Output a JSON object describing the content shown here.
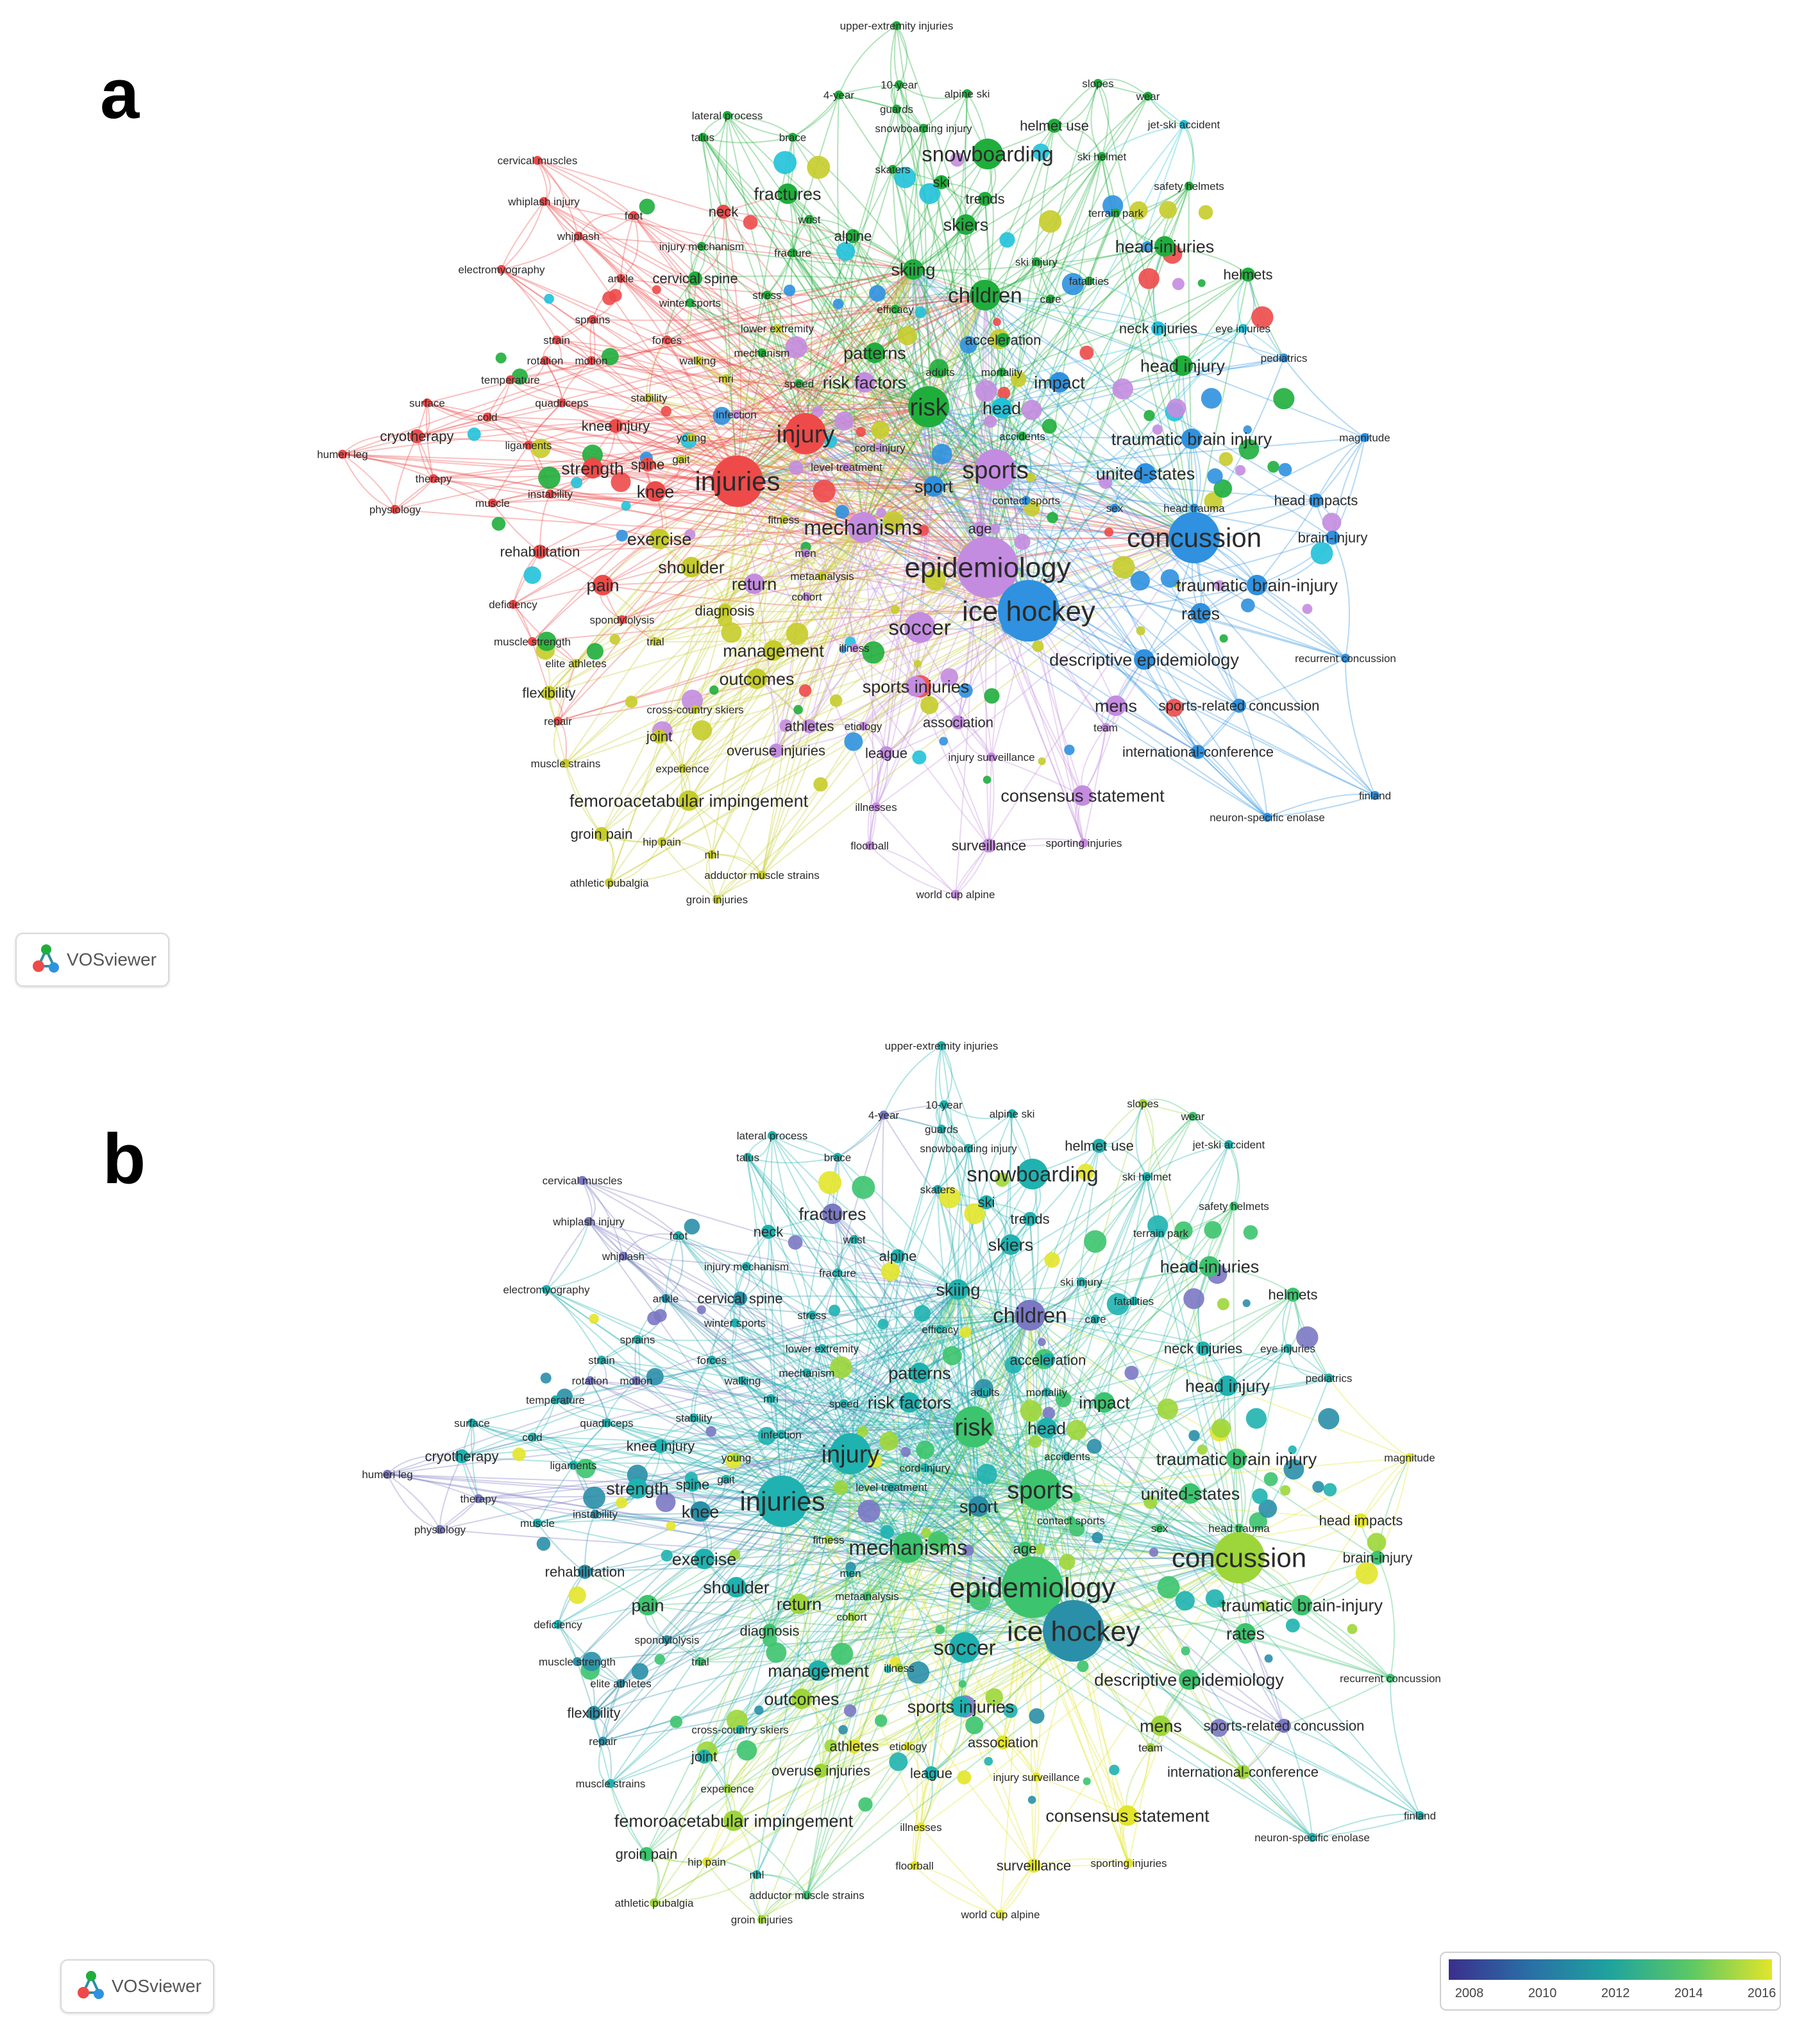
{
  "panels": [
    {
      "id": "a",
      "label": "a",
      "coloring": "cluster"
    },
    {
      "id": "b",
      "label": "b",
      "coloring": "year"
    }
  ],
  "watermark": {
    "text": "VOSviewer",
    "icon": "vosviewer-logo-icon"
  },
  "legend": {
    "ticks": [
      "2008",
      "2010",
      "2012",
      "2014",
      "2016"
    ],
    "colors": [
      "#3b2f8c",
      "#2a6fa6",
      "#1fa39e",
      "#5cc864",
      "#e3e52a"
    ]
  },
  "clusters": {
    "red": "#ee4a4a",
    "green": "#1fae3c",
    "blue": "#2f91df",
    "yellow": "#c6cc2a",
    "purple": "#c48ce0",
    "cyan": "#21c2da"
  },
  "year_colors": {
    "purple": "#7b78c4",
    "darkteal": "#2a8fa8",
    "teal": "#1fb2b0",
    "green": "#3cc46e",
    "lime": "#9dd63a",
    "yellow": "#e3e52a"
  },
  "chart_data": {
    "type": "network",
    "nodes": [
      {
        "label": "upper-extremity injuries",
        "size": 1,
        "cluster": "green",
        "year": "teal"
      },
      {
        "label": "10-year",
        "size": 1,
        "cluster": "green",
        "year": "teal"
      },
      {
        "label": "4-year",
        "size": 1,
        "cluster": "green",
        "year": "purple"
      },
      {
        "label": "alpine ski",
        "size": 1,
        "cluster": "green",
        "year": "teal"
      },
      {
        "label": "slopes",
        "size": 1,
        "cluster": "green",
        "year": "lime"
      },
      {
        "label": "wear",
        "size": 1,
        "cluster": "green",
        "year": "green"
      },
      {
        "label": "guards",
        "size": 1,
        "cluster": "green",
        "year": "teal"
      },
      {
        "label": "lateral process",
        "size": 1,
        "cluster": "green",
        "year": "teal"
      },
      {
        "label": "snowboarding injury",
        "size": 1,
        "cluster": "green",
        "year": "teal"
      },
      {
        "label": "helmet use",
        "size": 2,
        "cluster": "green",
        "year": "teal"
      },
      {
        "label": "jet-ski accident",
        "size": 1,
        "cluster": "cyan",
        "year": "teal"
      },
      {
        "label": "talus",
        "size": 1,
        "cluster": "green",
        "year": "teal"
      },
      {
        "label": "brace",
        "size": 1,
        "cluster": "green",
        "year": "teal"
      },
      {
        "label": "cervical muscles",
        "size": 1,
        "cluster": "red",
        "year": "purple"
      },
      {
        "label": "snowboarding",
        "size": 4,
        "cluster": "green",
        "year": "teal"
      },
      {
        "label": "ski helmet",
        "size": 1,
        "cluster": "green",
        "year": "teal"
      },
      {
        "label": "skaters",
        "size": 1,
        "cluster": "green",
        "year": "teal"
      },
      {
        "label": "ski",
        "size": 2,
        "cluster": "green",
        "year": "teal"
      },
      {
        "label": "safety helmets",
        "size": 1,
        "cluster": "green",
        "year": "green"
      },
      {
        "label": "fractures",
        "size": 3,
        "cluster": "green",
        "year": "purple"
      },
      {
        "label": "trends",
        "size": 2,
        "cluster": "green",
        "year": "teal"
      },
      {
        "label": "whiplash injury",
        "size": 1,
        "cluster": "red",
        "year": "purple"
      },
      {
        "label": "foot",
        "size": 1,
        "cluster": "red",
        "year": "teal"
      },
      {
        "label": "neck",
        "size": 2,
        "cluster": "red",
        "year": "teal"
      },
      {
        "label": "wrist",
        "size": 1,
        "cluster": "green",
        "year": "teal"
      },
      {
        "label": "terrain park",
        "size": 1,
        "cluster": "green",
        "year": "teal"
      },
      {
        "label": "skiers",
        "size": 3,
        "cluster": "green",
        "year": "teal"
      },
      {
        "label": "whiplash",
        "size": 1,
        "cluster": "red",
        "year": "purple"
      },
      {
        "label": "alpine",
        "size": 2,
        "cluster": "green",
        "year": "teal"
      },
      {
        "label": "head-injuries",
        "size": 3,
        "cluster": "green",
        "year": "green"
      },
      {
        "label": "injury mechanism",
        "size": 1,
        "cluster": "green",
        "year": "teal"
      },
      {
        "label": "fracture",
        "size": 1,
        "cluster": "green",
        "year": "teal"
      },
      {
        "label": "ski injury",
        "size": 1,
        "cluster": "green",
        "year": "teal"
      },
      {
        "label": "helmets",
        "size": 2,
        "cluster": "green",
        "year": "green"
      },
      {
        "label": "electromyography",
        "size": 1,
        "cluster": "red",
        "year": "teal"
      },
      {
        "label": "ankle",
        "size": 1,
        "cluster": "red",
        "year": "darkteal"
      },
      {
        "label": "cervical spine",
        "size": 2,
        "cluster": "green",
        "year": "darkteal"
      },
      {
        "label": "skiing",
        "size": 3,
        "cluster": "green",
        "year": "teal"
      },
      {
        "label": "fatalities",
        "size": 1,
        "cluster": "green",
        "year": "teal"
      },
      {
        "label": "children",
        "size": 4,
        "cluster": "green",
        "year": "purple"
      },
      {
        "label": "care",
        "size": 1,
        "cluster": "green",
        "year": "teal"
      },
      {
        "label": "stress",
        "size": 1,
        "cluster": "green",
        "year": "teal"
      },
      {
        "label": "winter sports",
        "size": 1,
        "cluster": "green",
        "year": "teal"
      },
      {
        "label": "efficacy",
        "size": 1,
        "cluster": "green",
        "year": "teal"
      },
      {
        "label": "sprains",
        "size": 1,
        "cluster": "red",
        "year": "teal"
      },
      {
        "label": "neck injuries",
        "size": 2,
        "cluster": "cyan",
        "year": "teal"
      },
      {
        "label": "eye injuries",
        "size": 1,
        "cluster": "cyan",
        "year": "teal"
      },
      {
        "label": "lower extremity",
        "size": 1,
        "cluster": "yellow",
        "year": "teal"
      },
      {
        "label": "pediatrics",
        "size": 1,
        "cluster": "blue",
        "year": "teal"
      },
      {
        "label": "strain",
        "size": 1,
        "cluster": "red",
        "year": "teal"
      },
      {
        "label": "forces",
        "size": 1,
        "cluster": "red",
        "year": "teal"
      },
      {
        "label": "acceleration",
        "size": 2,
        "cluster": "green",
        "year": "teal"
      },
      {
        "label": "rotation",
        "size": 1,
        "cluster": "red",
        "year": "purple"
      },
      {
        "label": "motion",
        "size": 1,
        "cluster": "red",
        "year": "purple"
      },
      {
        "label": "walking",
        "size": 1,
        "cluster": "yellow",
        "year": "teal"
      },
      {
        "label": "mechanism",
        "size": 1,
        "cluster": "green",
        "year": "teal"
      },
      {
        "label": "patterns",
        "size": 3,
        "cluster": "green",
        "year": "teal"
      },
      {
        "label": "head injury",
        "size": 3,
        "cluster": "green",
        "year": "teal"
      },
      {
        "label": "adults",
        "size": 1,
        "cluster": "green",
        "year": "teal"
      },
      {
        "label": "mortality",
        "size": 1,
        "cluster": "green",
        "year": "teal"
      },
      {
        "label": "temperature",
        "size": 1,
        "cluster": "red",
        "year": "teal"
      },
      {
        "label": "mri",
        "size": 1,
        "cluster": "yellow",
        "year": "teal"
      },
      {
        "label": "speed",
        "size": 1,
        "cluster": "green",
        "year": "teal"
      },
      {
        "label": "risk factors",
        "size": 3,
        "cluster": "purple",
        "year": "teal"
      },
      {
        "label": "impact",
        "size": 3,
        "cluster": "blue",
        "year": "green"
      },
      {
        "label": "surface",
        "size": 1,
        "cluster": "red",
        "year": "teal"
      },
      {
        "label": "quadriceps",
        "size": 1,
        "cluster": "red",
        "year": "teal"
      },
      {
        "label": "stability",
        "size": 1,
        "cluster": "yellow",
        "year": "teal"
      },
      {
        "label": "risk",
        "size": 5,
        "cluster": "green",
        "year": "green"
      },
      {
        "label": "head",
        "size": 3,
        "cluster": "cyan",
        "year": "teal"
      },
      {
        "label": "cold",
        "size": 1,
        "cluster": "red",
        "year": "teal"
      },
      {
        "label": "infection",
        "size": 1,
        "cluster": "purple",
        "year": "teal"
      },
      {
        "label": "knee injury",
        "size": 2,
        "cluster": "red",
        "year": "teal"
      },
      {
        "label": "accidents",
        "size": 1,
        "cluster": "green",
        "year": "teal"
      },
      {
        "label": "cryotherapy",
        "size": 2,
        "cluster": "red",
        "year": "teal"
      },
      {
        "label": "ligaments",
        "size": 1,
        "cluster": "red",
        "year": "teal"
      },
      {
        "label": "young",
        "size": 1,
        "cluster": "yellow",
        "year": "lime"
      },
      {
        "label": "injury",
        "size": 5,
        "cluster": "red",
        "year": "teal"
      },
      {
        "label": "cord-injury",
        "size": 1,
        "cluster": "purple",
        "year": "teal"
      },
      {
        "label": "traumatic brain injury",
        "size": 3,
        "cluster": "blue",
        "year": "green"
      },
      {
        "label": "magnitude",
        "size": 1,
        "cluster": "blue",
        "year": "yellow"
      },
      {
        "label": "humeri leg",
        "size": 1,
        "cluster": "red",
        "year": "purple"
      },
      {
        "label": "strength",
        "size": 3,
        "cluster": "red",
        "year": "teal"
      },
      {
        "label": "spine",
        "size": 2,
        "cluster": "red",
        "year": "teal"
      },
      {
        "label": "gait",
        "size": 1,
        "cluster": "yellow",
        "year": "teal"
      },
      {
        "label": "level treatment",
        "size": 1,
        "cluster": "purple",
        "year": "teal"
      },
      {
        "label": "sports",
        "size": 5,
        "cluster": "purple",
        "year": "green"
      },
      {
        "label": "united-states",
        "size": 3,
        "cluster": "blue",
        "year": "green"
      },
      {
        "label": "injuries",
        "size": 6,
        "cluster": "red",
        "year": "teal"
      },
      {
        "label": "therapy",
        "size": 1,
        "cluster": "red",
        "year": "purple"
      },
      {
        "label": "knee",
        "size": 3,
        "cluster": "red",
        "year": "darkteal"
      },
      {
        "label": "sport",
        "size": 3,
        "cluster": "blue",
        "year": "darkteal"
      },
      {
        "label": "contact sports",
        "size": 1,
        "cluster": "blue",
        "year": "green"
      },
      {
        "label": "head impacts",
        "size": 2,
        "cluster": "blue",
        "year": "yellow"
      },
      {
        "label": "instability",
        "size": 1,
        "cluster": "red",
        "year": "darkteal"
      },
      {
        "label": "physiology",
        "size": 1,
        "cluster": "red",
        "year": "purple"
      },
      {
        "label": "muscle",
        "size": 1,
        "cluster": "red",
        "year": "teal"
      },
      {
        "label": "sex",
        "size": 1,
        "cluster": "blue",
        "year": "green"
      },
      {
        "label": "head trauma",
        "size": 1,
        "cluster": "blue",
        "year": "green"
      },
      {
        "label": "fitness",
        "size": 1,
        "cluster": "yellow",
        "year": "lime"
      },
      {
        "label": "mechanisms",
        "size": 4,
        "cluster": "purple",
        "year": "green"
      },
      {
        "label": "age",
        "size": 2,
        "cluster": "purple",
        "year": "green"
      },
      {
        "label": "concussion",
        "size": 6,
        "cluster": "blue",
        "year": "lime"
      },
      {
        "label": "brain-injury",
        "size": 2,
        "cluster": "blue",
        "year": "green"
      },
      {
        "label": "exercise",
        "size": 3,
        "cluster": "yellow",
        "year": "teal"
      },
      {
        "label": "rehabilitation",
        "size": 2,
        "cluster": "red",
        "year": "darkteal"
      },
      {
        "label": "men",
        "size": 1,
        "cluster": "purple",
        "year": "teal"
      },
      {
        "label": "shoulder",
        "size": 3,
        "cluster": "yellow",
        "year": "teal"
      },
      {
        "label": "epidemiology",
        "size": 7,
        "cluster": "purple",
        "year": "green"
      },
      {
        "label": "metaanalysis",
        "size": 1,
        "cluster": "yellow",
        "year": "green"
      },
      {
        "label": "return",
        "size": 3,
        "cluster": "purple",
        "year": "lime"
      },
      {
        "label": "pain",
        "size": 3,
        "cluster": "red",
        "year": "green"
      },
      {
        "label": "traumatic brain-injury",
        "size": 3,
        "cluster": "blue",
        "year": "green"
      },
      {
        "label": "cohort",
        "size": 1,
        "cluster": "purple",
        "year": "lime"
      },
      {
        "label": "deficiency",
        "size": 1,
        "cluster": "red",
        "year": "teal"
      },
      {
        "label": "diagnosis",
        "size": 2,
        "cluster": "yellow",
        "year": "green"
      },
      {
        "label": "spondylolysis",
        "size": 1,
        "cluster": "red",
        "year": "darkteal"
      },
      {
        "label": "ice hockey",
        "size": 7,
        "cluster": "blue",
        "year": "darkteal"
      },
      {
        "label": "rates",
        "size": 3,
        "cluster": "blue",
        "year": "green"
      },
      {
        "label": "soccer",
        "size": 4,
        "cluster": "purple",
        "year": "teal"
      },
      {
        "label": "trial",
        "size": 1,
        "cluster": "yellow",
        "year": "green"
      },
      {
        "label": "muscle strength",
        "size": 1,
        "cluster": "red",
        "year": "darkteal"
      },
      {
        "label": "management",
        "size": 3,
        "cluster": "yellow",
        "year": "teal"
      },
      {
        "label": "illness",
        "size": 1,
        "cluster": "purple",
        "year": "lime"
      },
      {
        "label": "descriptive epidemiology",
        "size": 3,
        "cluster": "blue",
        "year": "green"
      },
      {
        "label": "recurrent concussion",
        "size": 1,
        "cluster": "blue",
        "year": "green"
      },
      {
        "label": "elite athletes",
        "size": 1,
        "cluster": "yellow",
        "year": "darkteal"
      },
      {
        "label": "outcomes",
        "size": 3,
        "cluster": "yellow",
        "year": "lime"
      },
      {
        "label": "flexibility",
        "size": 2,
        "cluster": "yellow",
        "year": "darkteal"
      },
      {
        "label": "sports injuries",
        "size": 3,
        "cluster": "purple",
        "year": "teal"
      },
      {
        "label": "mens",
        "size": 3,
        "cluster": "purple",
        "year": "lime"
      },
      {
        "label": "sports-related concussion",
        "size": 2,
        "cluster": "blue",
        "year": "purple"
      },
      {
        "label": "team",
        "size": 1,
        "cluster": "purple",
        "year": "lime"
      },
      {
        "label": "cross-country skiers",
        "size": 1,
        "cluster": "yellow",
        "year": "teal"
      },
      {
        "label": "repair",
        "size": 1,
        "cluster": "red",
        "year": "darkteal"
      },
      {
        "label": "joint",
        "size": 2,
        "cluster": "yellow",
        "year": "teal"
      },
      {
        "label": "athletes",
        "size": 2,
        "cluster": "purple",
        "year": "yellow"
      },
      {
        "label": "etiology",
        "size": 1,
        "cluster": "purple",
        "year": "yellow"
      },
      {
        "label": "association",
        "size": 2,
        "cluster": "purple",
        "year": "yellow"
      },
      {
        "label": "overuse injuries",
        "size": 2,
        "cluster": "purple",
        "year": "lime"
      },
      {
        "label": "league",
        "size": 2,
        "cluster": "purple",
        "year": "teal"
      },
      {
        "label": "injury surveillance",
        "size": 1,
        "cluster": "purple",
        "year": "yellow"
      },
      {
        "label": "international-conference",
        "size": 2,
        "cluster": "blue",
        "year": "lime"
      },
      {
        "label": "muscle strains",
        "size": 1,
        "cluster": "yellow",
        "year": "teal"
      },
      {
        "label": "experience",
        "size": 1,
        "cluster": "yellow",
        "year": "lime"
      },
      {
        "label": "femoroacetabular impingement",
        "size": 3,
        "cluster": "yellow",
        "year": "lime"
      },
      {
        "label": "illnesses",
        "size": 1,
        "cluster": "purple",
        "year": "yellow"
      },
      {
        "label": "consensus statement",
        "size": 3,
        "cluster": "purple",
        "year": "yellow"
      },
      {
        "label": "finland",
        "size": 1,
        "cluster": "blue",
        "year": "teal"
      },
      {
        "label": "neuron-specific enolase",
        "size": 1,
        "cluster": "blue",
        "year": "teal"
      },
      {
        "label": "groin pain",
        "size": 2,
        "cluster": "yellow",
        "year": "green"
      },
      {
        "label": "hip pain",
        "size": 1,
        "cluster": "yellow",
        "year": "yellow"
      },
      {
        "label": "floorball",
        "size": 1,
        "cluster": "purple",
        "year": "yellow"
      },
      {
        "label": "surveillance",
        "size": 2,
        "cluster": "purple",
        "year": "yellow"
      },
      {
        "label": "sporting injuries",
        "size": 1,
        "cluster": "purple",
        "year": "yellow"
      },
      {
        "label": "nhl",
        "size": 1,
        "cluster": "yellow",
        "year": "teal"
      },
      {
        "label": "adductor muscle strains",
        "size": 1,
        "cluster": "yellow",
        "year": "green"
      },
      {
        "label": "athletic pubalgia",
        "size": 1,
        "cluster": "yellow",
        "year": "lime"
      },
      {
        "label": "groin injuries",
        "size": 1,
        "cluster": "yellow",
        "year": "lime"
      },
      {
        "label": "world cup alpine",
        "size": 1,
        "cluster": "purple",
        "year": "yellow"
      }
    ]
  }
}
